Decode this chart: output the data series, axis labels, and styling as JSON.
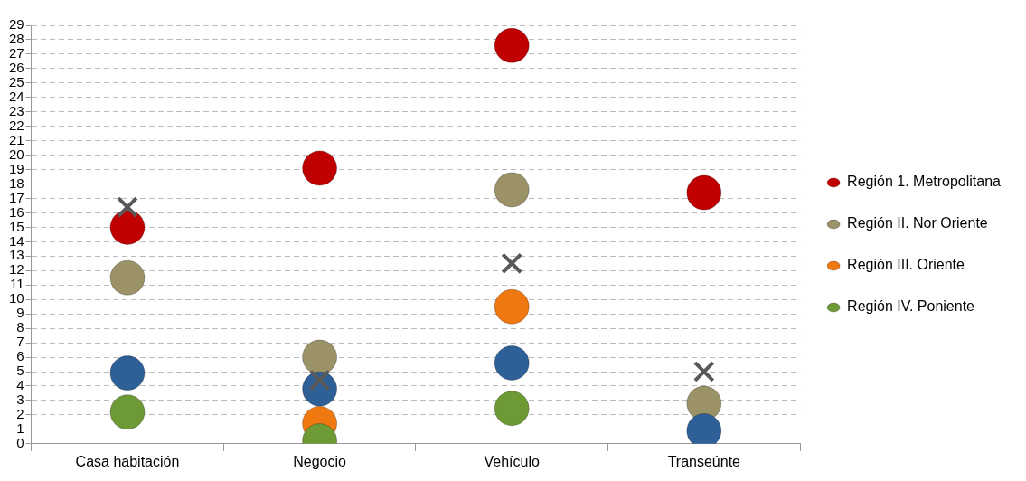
{
  "chart_data": {
    "type": "scatter",
    "categories": [
      "Casa habitación",
      "Negocio",
      "Vehículo",
      "Transeúnte"
    ],
    "series": [
      {
        "name": "Región 1. Metropolitana",
        "color": "#c00000",
        "marker": "circle",
        "values": [
          15,
          19.1,
          27.6,
          17.4
        ]
      },
      {
        "name": "Región II. Nor Oriente",
        "color": "#9b9367",
        "marker": "circle",
        "values": [
          11.5,
          6,
          17.6,
          2.8
        ]
      },
      {
        "name": "Región III. Oriente",
        "color": "#f07810",
        "marker": "circle",
        "values": [
          null,
          1.4,
          9.5,
          null
        ]
      },
      {
        "name": "Región IV. Poniente",
        "color": "#6e9a36",
        "marker": "circle",
        "values": [
          2.2,
          0.2,
          2.45,
          null
        ]
      },
      {
        "color": "#2f5f97",
        "marker": "circle",
        "values": [
          4.9,
          3.8,
          5.6,
          0.9
        ]
      },
      {
        "color": "#595959",
        "marker": "cross",
        "values": [
          16.4,
          4.4,
          12.5,
          5
        ]
      }
    ],
    "ylim": [
      0,
      29
    ],
    "yticks": [
      0,
      1,
      2,
      3,
      4,
      5,
      6,
      7,
      8,
      9,
      10,
      11,
      12,
      13,
      14,
      15,
      16,
      17,
      18,
      19,
      20,
      21,
      22,
      23,
      24,
      25,
      26,
      27,
      28,
      29
    ],
    "grid": "y",
    "legend": "right"
  }
}
